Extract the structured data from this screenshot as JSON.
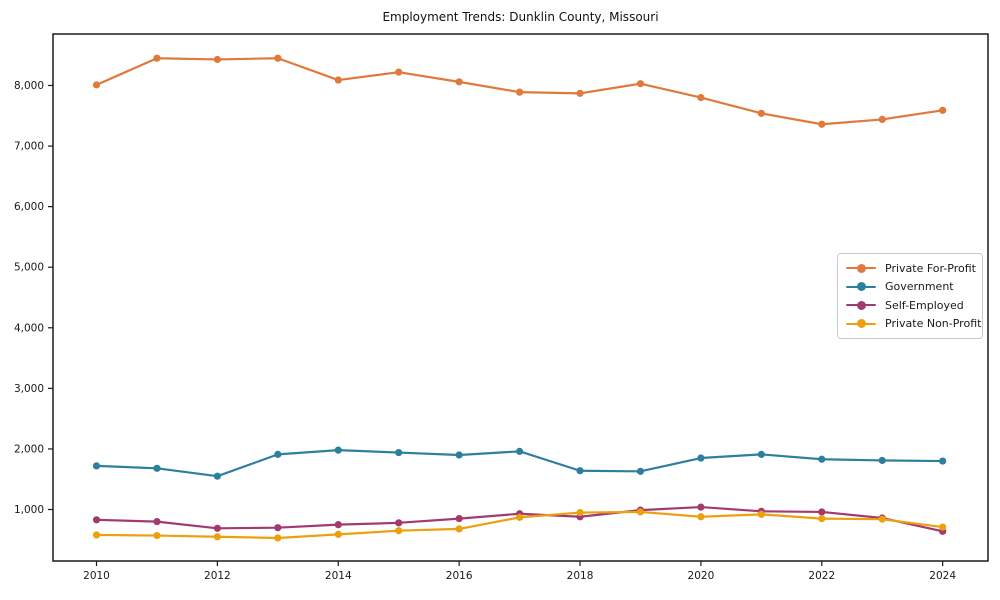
{
  "figure": {
    "title": "Employment Trends: Dunklin County, Missouri"
  },
  "chart_data": {
    "type": "line",
    "title": "Employment Trends: Dunklin County, Missouri",
    "xlabel": "",
    "ylabel": "",
    "grid": false,
    "legend_position": "center-right",
    "xlim": [
      2009.28,
      2024.75
    ],
    "ylim": [
      150,
      8850
    ],
    "x": [
      2010,
      2011,
      2012,
      2013,
      2014,
      2015,
      2016,
      2017,
      2018,
      2019,
      2020,
      2021,
      2022,
      2023,
      2024
    ],
    "x_ticks": [
      2010,
      2012,
      2014,
      2016,
      2018,
      2020,
      2022,
      2024
    ],
    "x_tick_labels": [
      "2010",
      "2012",
      "2014",
      "2016",
      "2018",
      "2020",
      "2022",
      "2024"
    ],
    "y_ticks": [
      1000,
      2000,
      3000,
      4000,
      5000,
      6000,
      7000,
      8000
    ],
    "y_tick_labels": [
      "1,000",
      "2,000",
      "3,000",
      "4,000",
      "5,000",
      "6,000",
      "7,000",
      "8,000"
    ],
    "series": [
      {
        "name": "Private For-Profit",
        "color": "#e0793c",
        "values": [
          8010,
          8450,
          8430,
          8450,
          8090,
          8220,
          8060,
          7890,
          7870,
          8030,
          7800,
          7540,
          7360,
          7440,
          7590
        ]
      },
      {
        "name": "Government",
        "color": "#2e7f9e",
        "values": [
          1720,
          1680,
          1550,
          1910,
          1980,
          1940,
          1900,
          1960,
          1640,
          1630,
          1850,
          1910,
          1830,
          1810,
          1800
        ]
      },
      {
        "name": "Self-Employed",
        "color": "#a23a70",
        "values": [
          830,
          800,
          690,
          700,
          750,
          780,
          850,
          930,
          880,
          990,
          1040,
          970,
          960,
          860,
          640
        ]
      },
      {
        "name": "Private Non-Profit",
        "color": "#eda00e",
        "values": [
          580,
          570,
          550,
          530,
          590,
          650,
          680,
          870,
          950,
          960,
          880,
          920,
          850,
          840,
          710
        ]
      }
    ]
  }
}
